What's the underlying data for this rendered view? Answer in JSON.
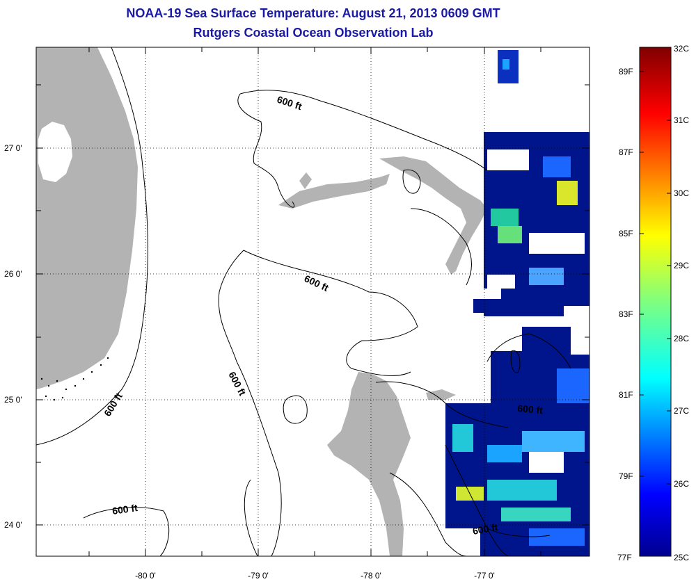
{
  "title": {
    "line1": "NOAA-19 Sea Surface Temperature:  August 21, 2013 0609 GMT",
    "line2": "Rutgers Coastal Ocean Observation Lab"
  },
  "map": {
    "lon_ticks": [
      "-80 0'",
      "-79 0'",
      "-78 0'",
      "-77 0'"
    ],
    "lat_ticks": [
      "27 0'",
      "26 0'",
      "25 0'",
      "24 0'"
    ],
    "contour_labels": [
      "600 ft",
      "600 ft",
      "600 ft",
      "600 ft",
      "600 ft",
      "600 ft",
      "600 ft"
    ],
    "land_color": "#b3b3b3",
    "contour_color": "#000000"
  },
  "colorbar": {
    "celsius_labels": [
      "32C",
      "31C",
      "30C",
      "29C",
      "28C",
      "27C",
      "26C",
      "25C"
    ],
    "fahrenheit_labels": [
      "89F",
      "87F",
      "85F",
      "83F",
      "81F",
      "79F",
      "77F"
    ],
    "range_c": [
      25,
      32
    ],
    "colormap": "jet"
  }
}
